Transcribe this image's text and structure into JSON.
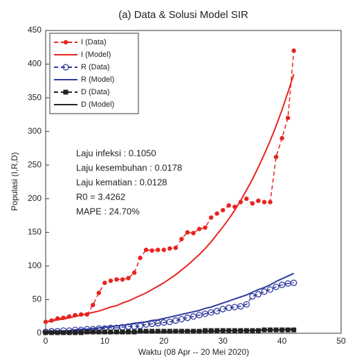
{
  "chart_data": {
    "type": "line",
    "title": "(a) Data & Solusi Model SIR",
    "x_label": "Waktu (08 Apr -- 20 Mei 2020)",
    "y_label": "Populasi (I,R,D)",
    "annotations": [
      "Laju infeksi : 0.1050",
      "Laju kesembuhan : 0.0178",
      "Laju kematian : 0.0128",
      "R0 = 3.4262",
      "MAPE : 24.70%"
    ],
    "xlim": [
      0,
      50
    ],
    "xticks": [
      0,
      10,
      20,
      30,
      40,
      50
    ],
    "ylim": [
      0,
      450
    ],
    "yticks": [
      0,
      50,
      100,
      150,
      200,
      250,
      300,
      350,
      400,
      450
    ],
    "legend": "upper left",
    "x": [
      0,
      1,
      2,
      3,
      4,
      5,
      6,
      7,
      8,
      9,
      10,
      11,
      12,
      13,
      14,
      15,
      16,
      17,
      18,
      19,
      20,
      21,
      22,
      23,
      24,
      25,
      26,
      27,
      28,
      29,
      30,
      31,
      32,
      33,
      34,
      35,
      36,
      37,
      38,
      39,
      40,
      41,
      42
    ],
    "series": [
      {
        "name": "I (Data)",
        "color": "#e8231f",
        "dash": true,
        "marker": "dot",
        "values": [
          17,
          19,
          22,
          23,
          25,
          27,
          28,
          28,
          42,
          60,
          75,
          78,
          80,
          80,
          82,
          90,
          112,
          124,
          123,
          124,
          124,
          126,
          127,
          140,
          150,
          149,
          155,
          157,
          172,
          178,
          183,
          190,
          188,
          195,
          200,
          193,
          197,
          195,
          195,
          262,
          290,
          320,
          420
        ]
      },
      {
        "name": "I (Model)",
        "color": "#e8231f",
        "dash": false,
        "marker": "none",
        "values": [
          17,
          18,
          20,
          21,
          23,
          25,
          27,
          29,
          31,
          33,
          36,
          39,
          41,
          45,
          48,
          52,
          56,
          60,
          65,
          70,
          75,
          81,
          87,
          94,
          101,
          109,
          117,
          126,
          136,
          147,
          158,
          170,
          183,
          197,
          213,
          229,
          247,
          266,
          286,
          308,
          332,
          358,
          385
        ]
      },
      {
        "name": "R (Data)",
        "color": "#2e3a9e",
        "dash": true,
        "marker": "circle",
        "values": [
          2,
          3,
          3,
          4,
          4,
          5,
          5,
          6,
          6,
          7,
          7,
          8,
          8,
          9,
          10,
          10,
          11,
          13,
          14,
          15,
          16,
          17,
          19,
          21,
          23,
          25,
          27,
          29,
          31,
          33,
          36,
          38,
          39,
          40,
          43,
          55,
          58,
          62,
          65,
          69,
          72,
          74,
          75
        ]
      },
      {
        "name": "R (Model)",
        "color": "#2e3a9e",
        "dash": false,
        "marker": "none",
        "values": [
          2,
          2,
          3,
          3,
          4,
          5,
          6,
          6,
          7,
          8,
          9,
          10,
          11,
          12,
          13,
          15,
          16,
          17,
          19,
          20,
          22,
          24,
          26,
          28,
          30,
          32,
          34,
          37,
          39,
          42,
          45,
          48,
          51,
          54,
          57,
          61,
          65,
          68,
          72,
          77,
          81,
          85,
          89
        ]
      },
      {
        "name": "D (Data)",
        "color": "#222222",
        "dash": true,
        "marker": "square",
        "values": [
          1,
          1,
          1,
          1,
          1,
          1,
          1,
          2,
          2,
          2,
          2,
          2,
          2,
          2,
          2,
          2,
          3,
          3,
          3,
          3,
          3,
          3,
          3,
          3,
          3,
          3,
          3,
          4,
          4,
          4,
          4,
          4,
          4,
          4,
          4,
          4,
          4,
          5,
          5,
          5,
          5,
          5,
          5
        ]
      },
      {
        "name": "D (Model)",
        "color": "#222222",
        "dash": false,
        "marker": "none",
        "values": [
          0,
          0,
          0,
          0,
          0,
          1,
          1,
          1,
          1,
          1,
          1,
          1,
          1,
          2,
          2,
          2,
          2,
          2,
          2,
          2,
          2,
          2,
          3,
          3,
          3,
          3,
          3,
          3,
          3,
          3,
          4,
          4,
          4,
          4,
          4,
          4,
          5,
          5,
          5,
          5,
          5,
          6,
          6
        ]
      }
    ]
  }
}
